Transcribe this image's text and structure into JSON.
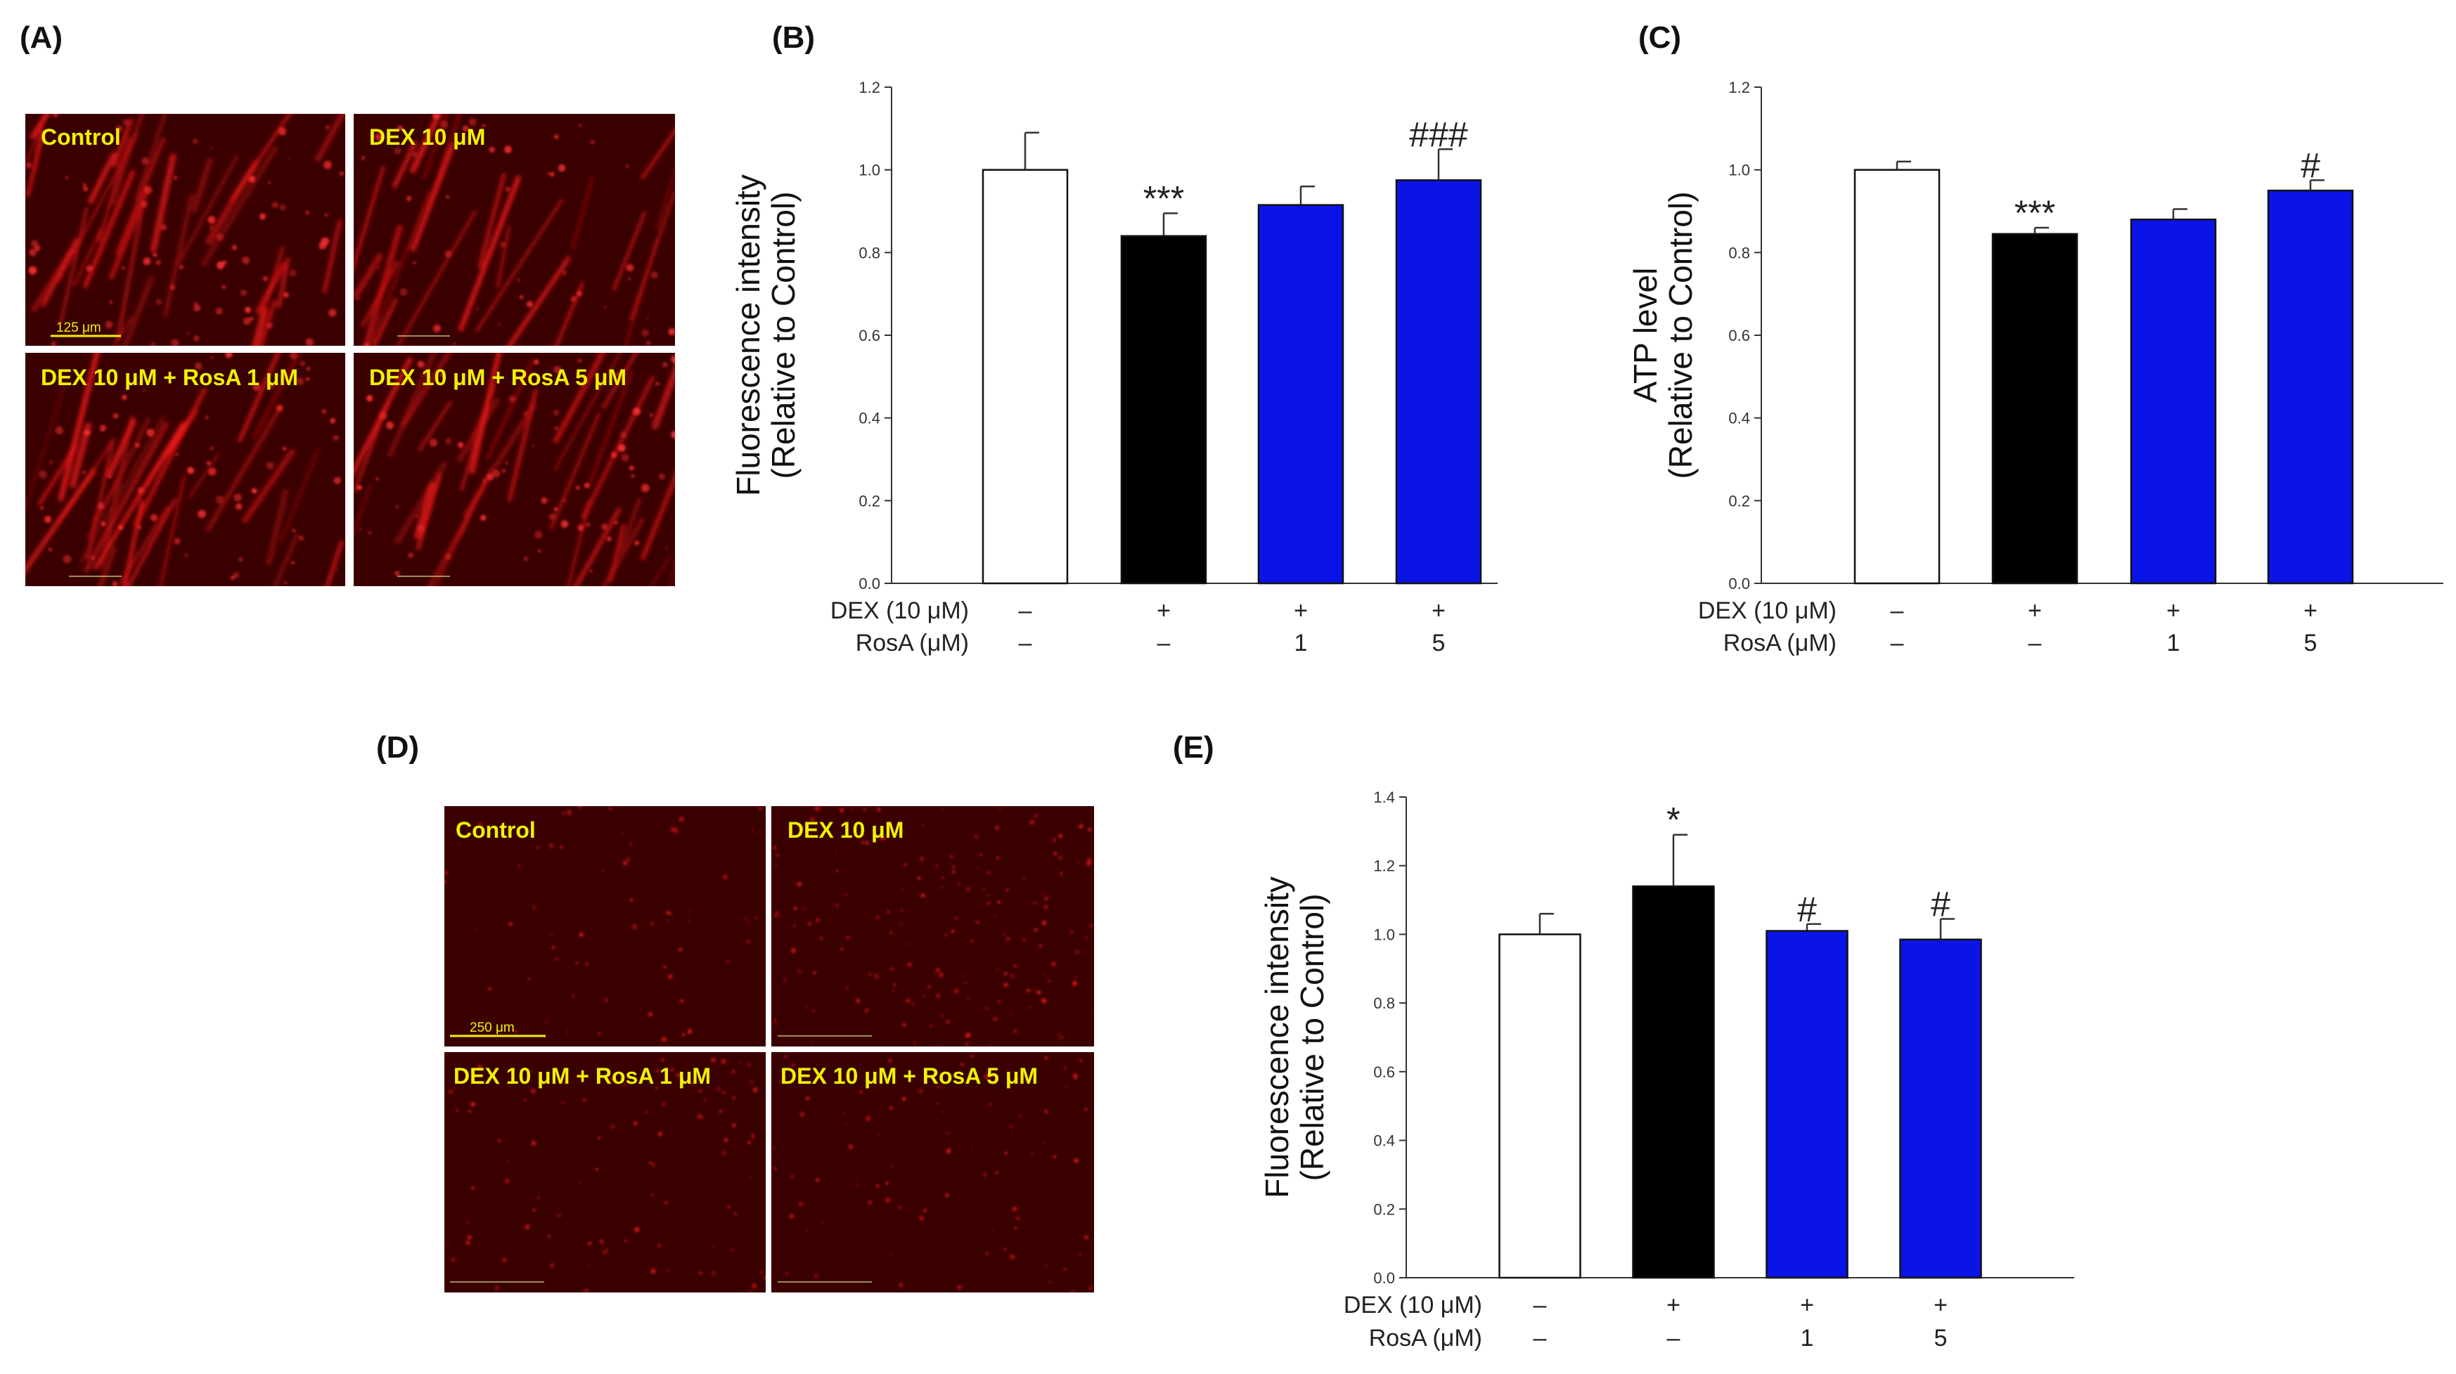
{
  "panels": {
    "A": {
      "label": "(A)",
      "images": [
        {
          "label": "Control",
          "scale_text": "125 μm"
        },
        {
          "label": "DEX 10 μM",
          "scale_text": ""
        },
        {
          "label": "DEX 10 μM + RosA  1 μM",
          "scale_text": ""
        },
        {
          "label": "DEX 10 μM + RosA  5 μM",
          "scale_text": ""
        }
      ]
    },
    "D": {
      "label": "(D)",
      "images": [
        {
          "label": "Control",
          "scale_text": "250 μm"
        },
        {
          "label": "DEX 10 μM",
          "scale_text": ""
        },
        {
          "label": "DEX 10 μM + RosA  1 μM",
          "scale_text": ""
        },
        {
          "label": "DEX 10 μM + RosA  5 μM",
          "scale_text": ""
        }
      ]
    }
  },
  "colors": {
    "bar_control": "#ffffff",
    "bar_dex": "#000000",
    "bar_rosa": "#0a14e6",
    "image_bg": "#3a0000",
    "signal": "#ff1a1a"
  },
  "chart_data": [
    {
      "id": "B",
      "panel_label": "(B)",
      "type": "bar",
      "ylabel_line1": "Fluorescence intensity",
      "ylabel_line2": "(Relative to Control)",
      "ylim": [
        0,
        1.2
      ],
      "yticks": [
        "0.0",
        "0.2",
        "0.4",
        "0.6",
        "0.8",
        "1.0",
        "1.2"
      ],
      "values": [
        1.0,
        0.84,
        0.915,
        0.975
      ],
      "errors": [
        0.09,
        0.055,
        0.045,
        0.075
      ],
      "significance": [
        "",
        "***",
        "",
        "###"
      ],
      "condition_rows": [
        {
          "label": "DEX (10 μM)",
          "values": [
            "–",
            "+",
            "+",
            "+"
          ]
        },
        {
          "label": "RosA (μM)",
          "values": [
            "–",
            "–",
            "1",
            "5"
          ]
        }
      ]
    },
    {
      "id": "C",
      "panel_label": "(C)",
      "type": "bar",
      "ylabel_line1": "ATP level",
      "ylabel_line2": "(Relative to Control)",
      "ylim": [
        0,
        1.2
      ],
      "yticks": [
        "0.0",
        "0.2",
        "0.4",
        "0.6",
        "0.8",
        "1.0",
        "1.2"
      ],
      "values": [
        1.0,
        0.845,
        0.88,
        0.95
      ],
      "errors": [
        0.02,
        0.015,
        0.025,
        0.025
      ],
      "significance": [
        "",
        "***",
        "",
        "#"
      ],
      "condition_rows": [
        {
          "label": "DEX (10 μM)",
          "values": [
            "–",
            "+",
            "+",
            "+"
          ]
        },
        {
          "label": "RosA (μM)",
          "values": [
            "–",
            "–",
            "1",
            "5"
          ]
        }
      ]
    },
    {
      "id": "E",
      "panel_label": "(E)",
      "type": "bar",
      "ylabel_line1": "Fluorescence intensity",
      "ylabel_line2": "(Relative to Control)",
      "ylim": [
        0,
        1.4
      ],
      "yticks": [
        "0.0",
        "0.2",
        "0.4",
        "0.6",
        "0.8",
        "1.0",
        "1.2",
        "1.4"
      ],
      "values": [
        1.0,
        1.14,
        1.01,
        0.985
      ],
      "errors": [
        0.06,
        0.15,
        0.02,
        0.06
      ],
      "significance": [
        "",
        "*",
        "#",
        "#"
      ],
      "condition_rows": [
        {
          "label": "DEX (10 μM)",
          "values": [
            "–",
            "+",
            "+",
            "+"
          ]
        },
        {
          "label": "RosA (μM)",
          "values": [
            "–",
            "–",
            "1",
            "5"
          ]
        }
      ]
    }
  ]
}
